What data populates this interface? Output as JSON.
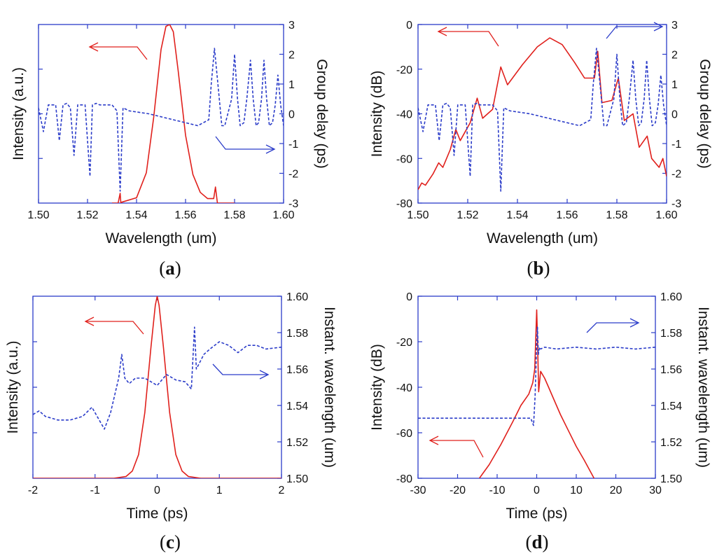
{
  "colors": {
    "red": "#e0201c",
    "blue": "#2b3cc9"
  },
  "chart_data": [
    {
      "id": "a",
      "type": "line",
      "panel_label": "a",
      "xlabel": "Wavelength (um)",
      "ylabel_left": "Intensity (a.u.)",
      "ylabel_right": "Group delay (ps)",
      "x_ticks": [
        "1.50",
        "1.52",
        "1.54",
        "1.56",
        "1.58",
        "1.60"
      ],
      "y_left_ticks": [],
      "y_right_ticks": [
        "3",
        "2",
        "1",
        "0",
        "-1",
        "-2",
        "-3"
      ],
      "xlim": [
        1.5,
        1.6
      ],
      "ylim_left": [
        0,
        1
      ],
      "ylim_right": [
        -3,
        3
      ],
      "grid": false,
      "series": [
        {
          "axis": "left",
          "style": "solid",
          "color": "red",
          "x": [
            1.53,
            1.5325,
            1.5333,
            1.5336,
            1.534,
            1.54,
            1.544,
            1.547,
            1.55,
            1.552,
            1.5535,
            1.555,
            1.557,
            1.56,
            1.563,
            1.566,
            1.569,
            1.5715,
            1.5722,
            1.573,
            1.58
          ],
          "y": [
            0.0,
            0.0,
            0.055,
            0.0,
            0.005,
            0.03,
            0.17,
            0.48,
            0.86,
            0.99,
            1.0,
            0.96,
            0.74,
            0.38,
            0.16,
            0.06,
            0.025,
            0.025,
            0.09,
            0.0,
            0.0
          ]
        },
        {
          "axis": "right",
          "style": "dashed",
          "color": "blue",
          "x": [
            1.5,
            1.502,
            1.504,
            1.507,
            1.5085,
            1.51,
            1.5115,
            1.513,
            1.5145,
            1.516,
            1.5175,
            1.519,
            1.521,
            1.522,
            1.5235,
            1.525,
            1.528,
            1.53,
            1.532,
            1.5333,
            1.5345,
            1.537,
            1.545,
            1.555,
            1.565,
            1.5695,
            1.5705,
            1.5718,
            1.5732,
            1.5748,
            1.576,
            1.5788,
            1.58,
            1.5812,
            1.5823,
            1.5838,
            1.585,
            1.5865,
            1.5876,
            1.5888,
            1.5898,
            1.591,
            1.592,
            1.5931,
            1.5942,
            1.5955,
            1.5966,
            1.5977,
            1.5988,
            1.6
          ],
          "y": [
            0.2,
            -0.6,
            0.3,
            0.3,
            -0.9,
            0.3,
            0.35,
            0.2,
            -1.4,
            0.3,
            0.3,
            0.3,
            -2.1,
            0.3,
            0.35,
            0.3,
            0.3,
            0.3,
            0.1,
            -2.6,
            0.2,
            0.1,
            0.0,
            -0.2,
            -0.4,
            -0.2,
            1.0,
            2.2,
            1.0,
            -0.4,
            -0.4,
            0.5,
            2.0,
            0.5,
            -0.4,
            -0.3,
            0.5,
            1.8,
            0.5,
            -0.4,
            -0.3,
            0.5,
            1.8,
            0.5,
            -0.4,
            -0.3,
            0.3,
            1.3,
            0.3,
            -0.4
          ]
        }
      ]
    },
    {
      "id": "b",
      "type": "line",
      "panel_label": "b",
      "xlabel": "Wavelength (um)",
      "ylabel_left": "Intensity (dB)",
      "ylabel_right": "Group delay (ps)",
      "x_ticks": [
        "1.50",
        "1.52",
        "1.54",
        "1.56",
        "1.58",
        "1.60"
      ],
      "y_left_ticks": [
        "0",
        "-20",
        "-40",
        "-60",
        "-80"
      ],
      "y_right_ticks": [
        "3",
        "2",
        "1",
        "0",
        "-1",
        "-2",
        "-3"
      ],
      "xlim": [
        1.5,
        1.6
      ],
      "ylim_left": [
        -80,
        0
      ],
      "ylim_right": [
        -3,
        3
      ],
      "grid": false,
      "series": [
        {
          "axis": "left",
          "style": "solid",
          "color": "red",
          "x": [
            1.5,
            1.5015,
            1.503,
            1.506,
            1.5083,
            1.51,
            1.513,
            1.5152,
            1.517,
            1.521,
            1.5238,
            1.526,
            1.53,
            1.5333,
            1.536,
            1.542,
            1.548,
            1.553,
            1.558,
            1.563,
            1.567,
            1.571,
            1.5723,
            1.574,
            1.578,
            1.5806,
            1.583,
            1.5865,
            1.589,
            1.5922,
            1.594,
            1.597,
            1.5985,
            1.6
          ],
          "y": [
            -74,
            -71,
            -72,
            -67,
            -62,
            -64,
            -56,
            -47,
            -52,
            -44,
            -33,
            -42,
            -38,
            -19,
            -27,
            -18,
            -10,
            -6,
            -9,
            -17,
            -24,
            -24,
            -12,
            -35,
            -34,
            -24,
            -43,
            -40,
            -55,
            -50,
            -60,
            -64,
            -60,
            -68
          ]
        },
        {
          "axis": "right",
          "style": "dashed",
          "color": "blue",
          "x": [
            1.5,
            1.502,
            1.504,
            1.507,
            1.5085,
            1.51,
            1.5115,
            1.513,
            1.5145,
            1.516,
            1.5175,
            1.519,
            1.521,
            1.522,
            1.5235,
            1.525,
            1.528,
            1.53,
            1.532,
            1.5333,
            1.5345,
            1.537,
            1.545,
            1.555,
            1.565,
            1.5695,
            1.5705,
            1.5718,
            1.5732,
            1.5748,
            1.576,
            1.5788,
            1.58,
            1.5812,
            1.5823,
            1.5838,
            1.585,
            1.5865,
            1.5876,
            1.5888,
            1.5898,
            1.591,
            1.592,
            1.5931,
            1.5942,
            1.5955,
            1.5966,
            1.5977,
            1.5988,
            1.6
          ],
          "y": [
            0.2,
            -0.6,
            0.3,
            0.3,
            -0.9,
            0.3,
            0.35,
            0.2,
            -1.4,
            0.3,
            0.3,
            0.3,
            -2.1,
            0.3,
            0.35,
            0.3,
            0.3,
            0.3,
            0.1,
            -2.6,
            0.2,
            0.1,
            0.0,
            -0.2,
            -0.4,
            -0.2,
            1.0,
            2.2,
            1.0,
            -0.4,
            -0.4,
            0.5,
            2.0,
            0.5,
            -0.4,
            -0.3,
            0.5,
            1.8,
            0.5,
            -0.4,
            -0.3,
            0.5,
            1.8,
            0.5,
            -0.4,
            -0.3,
            0.3,
            1.3,
            0.3,
            -0.4
          ]
        }
      ]
    },
    {
      "id": "c",
      "type": "line",
      "panel_label": "c",
      "xlabel": "Time (ps)",
      "ylabel_left": "Intensity (a.u.)",
      "ylabel_right": "Instant. wavelength (um)",
      "x_ticks": [
        "-2",
        "-1",
        "0",
        "1",
        "2"
      ],
      "y_left_ticks": [],
      "y_right_ticks": [
        "1.60",
        "1.58",
        "1.56",
        "1.54",
        "1.52",
        "1.50"
      ],
      "xlim": [
        -2,
        2
      ],
      "ylim_left": [
        0,
        1
      ],
      "ylim_right": [
        1.5,
        1.6
      ],
      "grid": false,
      "series": [
        {
          "axis": "left",
          "style": "solid",
          "color": "red",
          "x": [
            -2,
            -0.7,
            -0.5,
            -0.4,
            -0.3,
            -0.2,
            -0.1,
            -0.03,
            0,
            0.03,
            0.1,
            0.2,
            0.3,
            0.4,
            0.5,
            0.7,
            2
          ],
          "y": [
            0,
            0,
            0.01,
            0.04,
            0.13,
            0.36,
            0.72,
            0.95,
            1.0,
            0.95,
            0.72,
            0.36,
            0.13,
            0.04,
            0.01,
            0,
            0
          ]
        },
        {
          "axis": "right",
          "style": "dashed",
          "color": "blue",
          "x": [
            -2.0,
            -1.9,
            -1.8,
            -1.6,
            -1.4,
            -1.2,
            -1.05,
            -0.95,
            -0.85,
            -0.75,
            -0.62,
            -0.57,
            -0.52,
            -0.45,
            -0.35,
            -0.2,
            0.0,
            0.15,
            0.3,
            0.45,
            0.55,
            0.6,
            0.63,
            0.66,
            0.75,
            0.85,
            1.0,
            1.15,
            1.3,
            1.45,
            1.6,
            1.75,
            2.0
          ],
          "y": [
            1.535,
            1.537,
            1.534,
            1.532,
            1.532,
            1.534,
            1.539,
            1.533,
            1.527,
            1.536,
            1.555,
            1.568,
            1.555,
            1.552,
            1.555,
            1.555,
            1.551,
            1.557,
            1.554,
            1.553,
            1.549,
            1.583,
            1.56,
            1.562,
            1.568,
            1.571,
            1.575,
            1.573,
            1.569,
            1.573,
            1.573,
            1.571,
            1.572
          ]
        }
      ]
    },
    {
      "id": "d",
      "type": "line",
      "panel_label": "d",
      "xlabel": "Time (ps)",
      "ylabel_left": "Intensity (dB)",
      "ylabel_right": "Instant. wavelength (um)",
      "x_ticks": [
        "-30",
        "-20",
        "-10",
        "0",
        "10",
        "20",
        "30"
      ],
      "y_left_ticks": [
        "0",
        "-20",
        "-40",
        "-60",
        "-80"
      ],
      "y_right_ticks": [
        "1.60",
        "1.58",
        "1.56",
        "1.54",
        "1.52",
        "1.50"
      ],
      "xlim": [
        -30,
        30
      ],
      "ylim_left": [
        -80,
        0
      ],
      "ylim_right": [
        1.5,
        1.6
      ],
      "grid": false,
      "series": [
        {
          "axis": "left",
          "style": "solid",
          "color": "red",
          "x": [
            -14.5,
            -12,
            -9,
            -6,
            -4,
            -2,
            -1,
            -0.5,
            -0.2,
            0,
            0.2,
            0.5,
            1,
            2,
            3,
            4,
            6,
            8,
            10,
            12,
            14.5
          ],
          "y": [
            -80,
            -74,
            -65,
            -55,
            -48,
            -43,
            -38,
            -32,
            -16,
            -6,
            -18,
            -42,
            -33,
            -36,
            -40,
            -44,
            -52,
            -59,
            -66,
            -72,
            -80
          ]
        },
        {
          "axis": "right",
          "style": "dashed",
          "color": "blue",
          "x": [
            -30,
            -20,
            -10,
            -4,
            -1.5,
            -0.8,
            -0.4,
            -0.2,
            0,
            0.2,
            0.4,
            0.7,
            1,
            2,
            5,
            10,
            15,
            20,
            25,
            30
          ],
          "y": [
            1.533,
            1.533,
            1.533,
            1.533,
            1.533,
            1.529,
            1.545,
            1.56,
            1.575,
            1.583,
            1.568,
            1.572,
            1.571,
            1.572,
            1.571,
            1.572,
            1.571,
            1.572,
            1.571,
            1.572
          ]
        }
      ]
    }
  ]
}
